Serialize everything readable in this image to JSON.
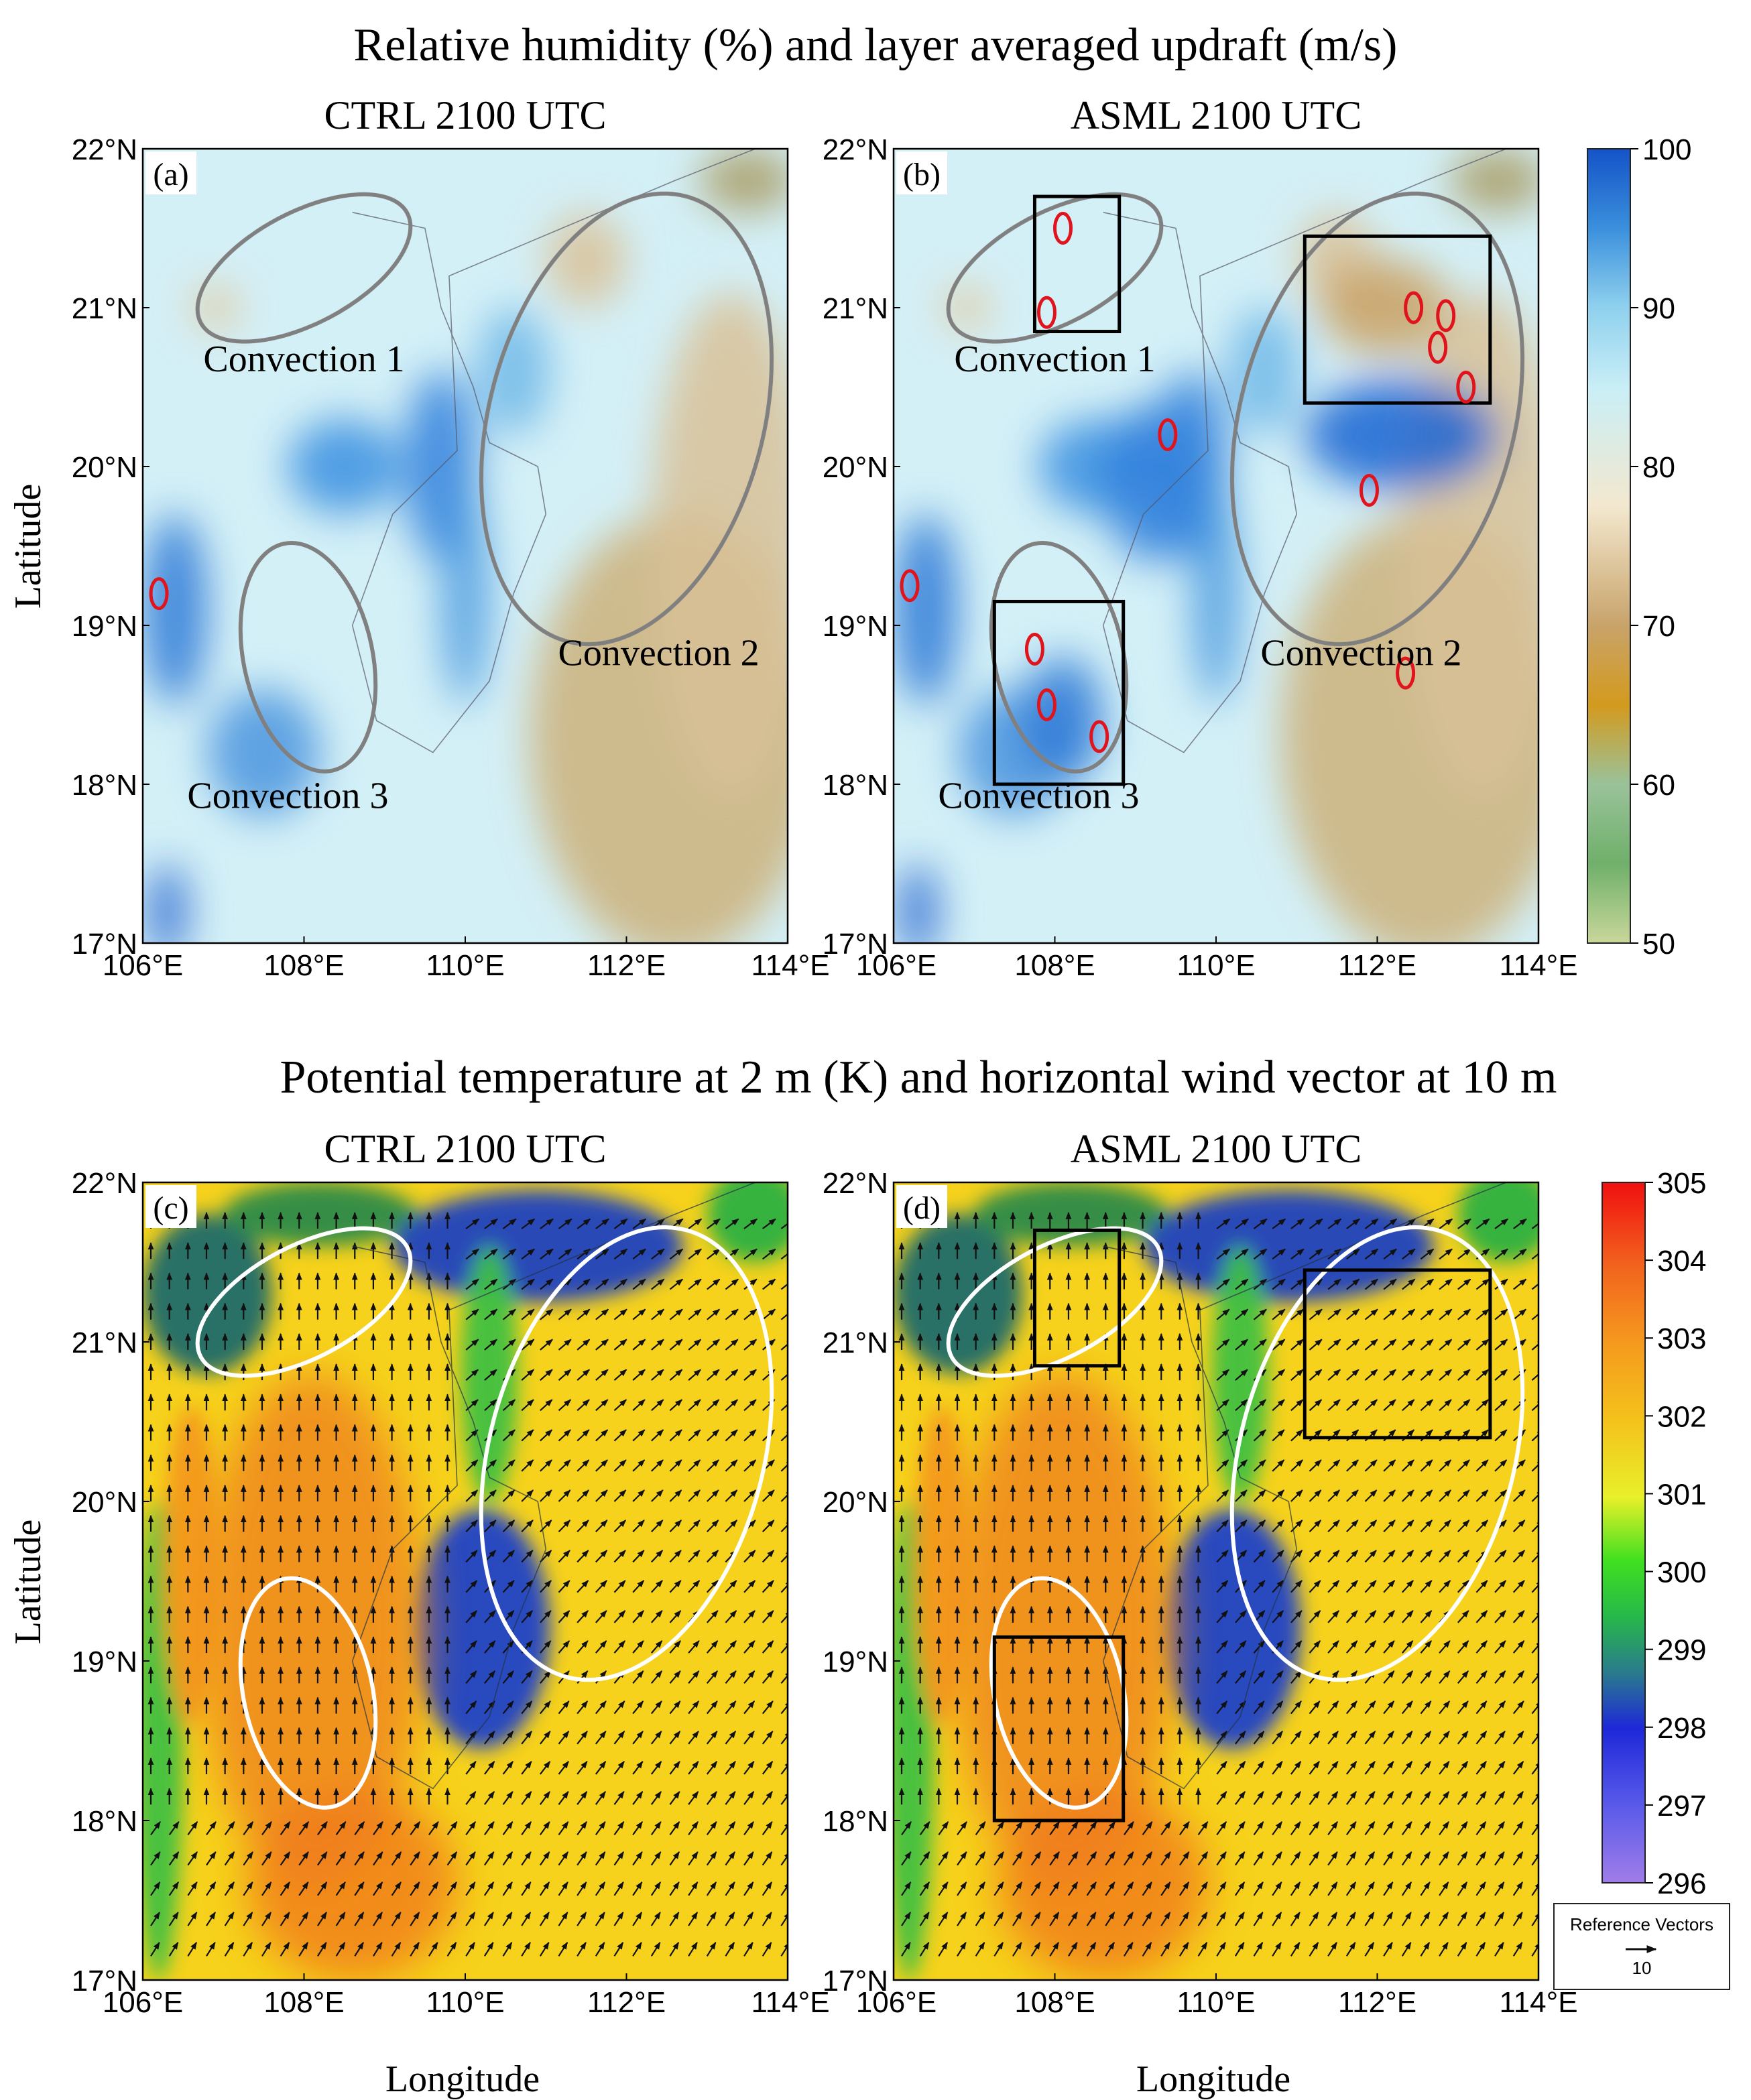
{
  "chart_data": [
    {
      "type": "heatmap",
      "id": "a",
      "figure_title": "Relative humidity (%) and layer averaged updraft (m/s)",
      "panel_label": "(a)",
      "title": "CTRL 2100 UTC",
      "xlabel": "",
      "ylabel": "Latitude",
      "xlim": [
        106,
        114
      ],
      "ylim": [
        17,
        22
      ],
      "xticks": [
        "106°E",
        "108°E",
        "110°E",
        "112°E",
        "114°E"
      ],
      "yticks": [
        "17°N",
        "18°N",
        "19°N",
        "20°N",
        "21°N",
        "22°N"
      ],
      "variable": "relative humidity",
      "colorbar": {
        "min": 50,
        "max": 100,
        "ticks": [
          "50",
          "60",
          "70",
          "80",
          "90",
          "100"
        ]
      },
      "annotations": [
        {
          "text": "Convection 1",
          "lon": 108.0,
          "lat": 20.6
        },
        {
          "text": "Convection 2",
          "lon": 112.4,
          "lat": 18.75
        },
        {
          "text": "Convection 3",
          "lon": 107.8,
          "lat": 17.85
        }
      ],
      "ellipses": [
        {
          "name": "convection-1-ellipse",
          "lon": 108.0,
          "lat": 21.25,
          "rlon": 1.45,
          "rlat": 0.35,
          "angle": -28
        },
        {
          "name": "convection-2-ellipse",
          "lon": 112.0,
          "lat": 20.3,
          "rlon": 1.7,
          "rlat": 1.45,
          "angle": 15
        },
        {
          "name": "convection-3-ellipse",
          "lon": 108.05,
          "lat": 18.8,
          "rlon": 0.8,
          "rlat": 0.73,
          "angle": -12
        }
      ],
      "updraft_contours": [
        {
          "lon": 106.2,
          "lat": 19.2
        }
      ]
    },
    {
      "type": "heatmap",
      "id": "b",
      "panel_label": "(b)",
      "title": "ASML 2100 UTC",
      "xlim": [
        106,
        114
      ],
      "ylim": [
        17,
        22
      ],
      "xticks": [
        "106°E",
        "108°E",
        "110°E",
        "112°E",
        "114°E"
      ],
      "yticks": [
        "17°N",
        "18°N",
        "19°N",
        "20°N",
        "21°N",
        "22°N"
      ],
      "variable": "relative humidity",
      "annotations": [
        {
          "text": "Convection 1",
          "lon": 108.0,
          "lat": 20.6
        },
        {
          "text": "Convection 2",
          "lon": 111.8,
          "lat": 18.75
        },
        {
          "text": "Convection 3",
          "lon": 107.8,
          "lat": 17.85
        }
      ],
      "ellipses": [
        {
          "name": "convection-1-ellipse",
          "lon": 108.0,
          "lat": 21.25,
          "rlon": 1.45,
          "rlat": 0.35,
          "angle": -28
        },
        {
          "name": "convection-2-ellipse",
          "lon": 112.0,
          "lat": 20.3,
          "rlon": 1.7,
          "rlat": 1.45,
          "angle": 15
        },
        {
          "name": "convection-3-ellipse",
          "lon": 108.05,
          "lat": 18.8,
          "rlon": 0.8,
          "rlat": 0.73,
          "angle": -12
        }
      ],
      "boxes": [
        {
          "lon0": 107.75,
          "lon1": 108.8,
          "lat0": 20.85,
          "lat1": 21.7
        },
        {
          "lon0": 111.1,
          "lon1": 113.4,
          "lat0": 20.4,
          "lat1": 21.45
        },
        {
          "lon0": 107.25,
          "lon1": 108.85,
          "lat0": 18.0,
          "lat1": 19.15
        }
      ],
      "updraft_contours": [
        {
          "lon": 108.1,
          "lat": 21.5
        },
        {
          "lon": 107.9,
          "lat": 20.97
        },
        {
          "lon": 112.45,
          "lat": 21.0
        },
        {
          "lon": 112.85,
          "lat": 20.95
        },
        {
          "lon": 112.75,
          "lat": 20.75
        },
        {
          "lon": 113.1,
          "lat": 20.5
        },
        {
          "lon": 111.9,
          "lat": 19.85
        },
        {
          "lon": 112.35,
          "lat": 18.7
        },
        {
          "lon": 109.4,
          "lat": 20.2
        },
        {
          "lon": 107.75,
          "lat": 18.85
        },
        {
          "lon": 107.9,
          "lat": 18.5
        },
        {
          "lon": 108.55,
          "lat": 18.3
        },
        {
          "lon": 106.2,
          "lat": 19.25
        }
      ]
    },
    {
      "type": "heatmap",
      "id": "c",
      "figure_title": "Potential temperature at 2 m (K) and horizontal wind vector at 10 m",
      "panel_label": "(c)",
      "title": "CTRL 2100 UTC",
      "xlabel": "Longitude",
      "ylabel": "Latitude",
      "xlim": [
        106,
        114
      ],
      "ylim": [
        17,
        22
      ],
      "xticks": [
        "106°E",
        "108°E",
        "110°E",
        "112°E",
        "114°E"
      ],
      "yticks": [
        "17°N",
        "18°N",
        "19°N",
        "20°N",
        "21°N",
        "22°N"
      ],
      "variable": "potential temperature at 2 m",
      "colorbar": {
        "min": 296,
        "max": 305,
        "ticks": [
          "296",
          "297",
          "298",
          "299",
          "300",
          "301",
          "302",
          "303",
          "304",
          "305"
        ]
      },
      "ellipses": [
        {
          "name": "convection-1-ellipse",
          "lon": 108.0,
          "lat": 21.25,
          "rlon": 1.45,
          "rlat": 0.35,
          "angle": -28
        },
        {
          "name": "convection-2-ellipse",
          "lon": 112.0,
          "lat": 20.3,
          "rlon": 1.7,
          "rlat": 1.45,
          "angle": 15
        },
        {
          "name": "convection-3-ellipse",
          "lon": 108.05,
          "lat": 18.8,
          "rlon": 0.8,
          "rlat": 0.73,
          "angle": -12
        }
      ],
      "wind_vectors": "uniform grid, mostly northward",
      "reference_vector": {
        "label": "Reference Vectors",
        "value": "10"
      }
    },
    {
      "type": "heatmap",
      "id": "d",
      "panel_label": "(d)",
      "title": "ASML 2100 UTC",
      "xlabel": "Longitude",
      "xlim": [
        106,
        114
      ],
      "ylim": [
        17,
        22
      ],
      "xticks": [
        "106°E",
        "108°E",
        "110°E",
        "112°E",
        "114°E"
      ],
      "yticks": [
        "17°N",
        "18°N",
        "19°N",
        "20°N",
        "21°N",
        "22°N"
      ],
      "variable": "potential temperature at 2 m",
      "ellipses": [
        {
          "name": "convection-1-ellipse",
          "lon": 108.0,
          "lat": 21.25,
          "rlon": 1.45,
          "rlat": 0.35,
          "angle": -28
        },
        {
          "name": "convection-2-ellipse",
          "lon": 112.0,
          "lat": 20.3,
          "rlon": 1.7,
          "rlat": 1.45,
          "angle": 15
        },
        {
          "name": "convection-3-ellipse",
          "lon": 108.05,
          "lat": 18.8,
          "rlon": 0.8,
          "rlat": 0.73,
          "angle": -12
        }
      ],
      "boxes": [
        {
          "lon0": 107.75,
          "lon1": 108.8,
          "lat0": 20.85,
          "lat1": 21.7
        },
        {
          "lon0": 111.1,
          "lon1": 113.4,
          "lat0": 20.4,
          "lat1": 21.45
        },
        {
          "lon0": 107.25,
          "lon1": 108.85,
          "lat0": 18.0,
          "lat1": 19.15
        }
      ]
    }
  ],
  "labels": {
    "top_title": "Relative humidity (%) and layer averaged updraft (m/s)",
    "bottom_title": "Potential temperature at 2 m (K) and horizontal wind vector at 10 m",
    "ylabel": "Latitude",
    "xlabel": "Longitude"
  },
  "colors": {
    "ellipse_top": "#808080",
    "ellipse_bottom": "#ffffff",
    "updraft": "#e0141c",
    "box": "#000000"
  }
}
